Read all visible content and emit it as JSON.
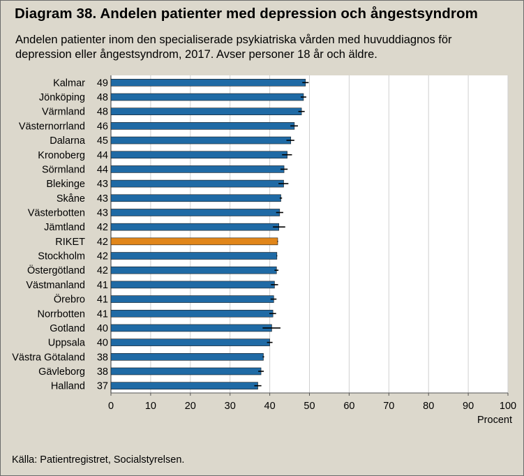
{
  "title": "Diagram 38. Andelen patienter med depression och ångestsyndrom",
  "subtitle": "Andelen patienter inom den specialiserade psykiatriska vården med huvuddiagnos för depression eller ångestsyndrom, 2017.  Avser personer 18 år och äldre.",
  "source": "Källa: Patientregistret, Socialstyrelsen.",
  "colors": {
    "bar": "#1f6aa5",
    "highlight": "#e1861a",
    "error": "#000000",
    "plot_bg": "#ffffff",
    "page_bg": "#dcd8cc"
  },
  "chart_data": {
    "type": "bar",
    "orientation": "horizontal",
    "categories": [
      "Kalmar",
      "Jönköping",
      "Värmland",
      "Västernorrland",
      "Dalarna",
      "Kronoberg",
      "Sörmland",
      "Blekinge",
      "Skåne",
      "Västerbotten",
      "Jämtland",
      "RIKET",
      "Stockholm",
      "Östergötland",
      "Västmanland",
      "Örebro",
      "Norrbotten",
      "Gotland",
      "Uppsala",
      "Västra Götaland",
      "Gävleborg",
      "Halland"
    ],
    "labels": [
      "49",
      "48",
      "48",
      "46",
      "45",
      "44",
      "44",
      "43",
      "43",
      "43",
      "42",
      "42",
      "42",
      "42",
      "41",
      "41",
      "41",
      "40",
      "40",
      "38",
      "38",
      "37"
    ],
    "values": [
      49.0,
      48.5,
      48.0,
      46.2,
      45.3,
      44.4,
      43.6,
      43.5,
      42.8,
      42.5,
      42.3,
      42.0,
      41.8,
      41.7,
      41.2,
      41.0,
      40.8,
      40.5,
      40.0,
      38.4,
      37.8,
      37.0
    ],
    "error_low": [
      48.2,
      47.8,
      47.2,
      45.2,
      44.2,
      43.1,
      42.7,
      42.2,
      42.5,
      41.6,
      40.8,
      41.9,
      41.7,
      41.2,
      40.3,
      40.2,
      39.9,
      38.2,
      39.3,
      38.2,
      37.1,
      36.1
    ],
    "error_high": [
      49.8,
      49.2,
      48.8,
      47.1,
      46.2,
      45.6,
      44.5,
      44.7,
      43.1,
      43.4,
      43.9,
      42.1,
      41.9,
      42.2,
      42.1,
      41.7,
      41.6,
      42.7,
      40.7,
      38.6,
      38.5,
      37.9
    ],
    "highlight": "RIKET",
    "xlim": [
      0,
      100
    ],
    "xticks": [
      0,
      10,
      20,
      30,
      40,
      50,
      60,
      70,
      80,
      90,
      100
    ],
    "xlabel": "Procent",
    "gridlines": "vertical"
  }
}
